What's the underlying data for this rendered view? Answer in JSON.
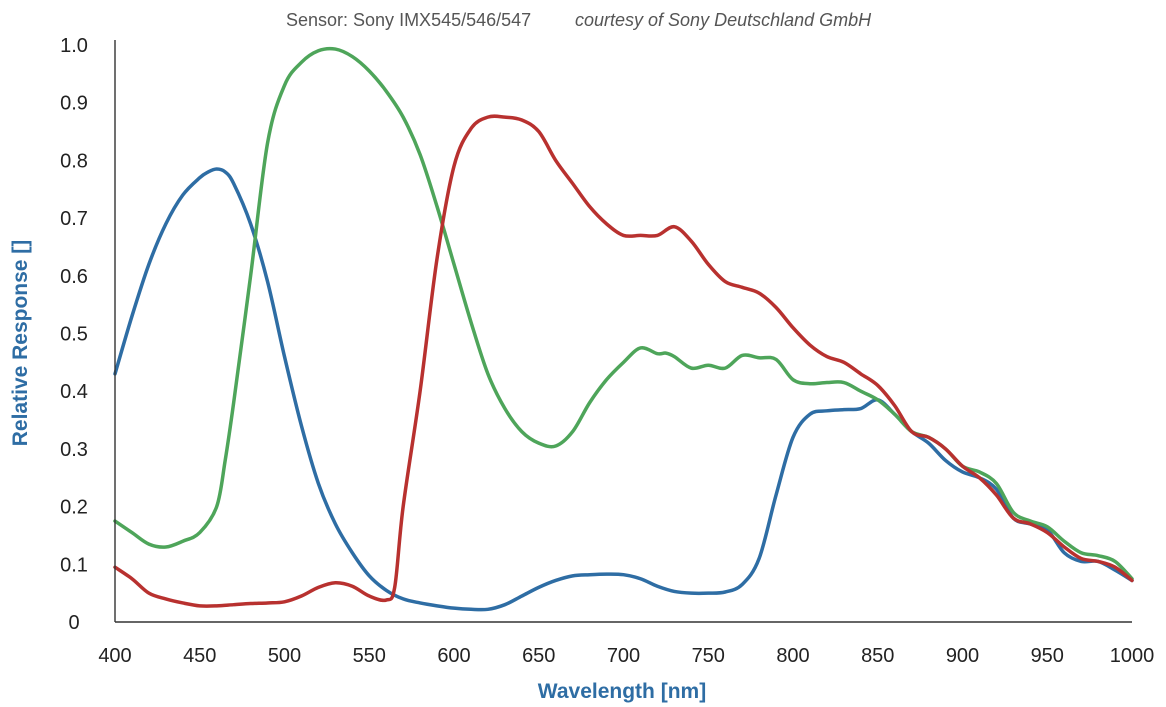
{
  "chart_data": {
    "type": "line",
    "title": "Sensor: Sony IMX545/546/547",
    "subtitle": "courtesy of Sony Deutschland GmbH",
    "xlabel": "Wavelength [nm]",
    "ylabel": "Relative Response []",
    "xlim": [
      400,
      1000
    ],
    "ylim": [
      0,
      1.0
    ],
    "x_ticks": [
      "400",
      "450",
      "500",
      "550",
      "600",
      "650",
      "700",
      "750",
      "800",
      "850",
      "900",
      "950",
      "1000"
    ],
    "y_ticks": [
      "0",
      "0.1",
      "0.2",
      "0.3",
      "0.4",
      "0.5",
      "0.6",
      "0.7",
      "0.8",
      "0.9",
      "1.0"
    ],
    "axis_label_color": "#2e6da4",
    "grid": false,
    "legend": "none",
    "series": [
      {
        "color": "#2e6da4",
        "x": [
          400,
          410,
          420,
          430,
          440,
          450,
          455,
          460,
          465,
          470,
          480,
          490,
          500,
          510,
          520,
          530,
          540,
          550,
          560,
          570,
          580,
          590,
          600,
          610,
          620,
          630,
          640,
          650,
          660,
          670,
          680,
          690,
          700,
          710,
          720,
          730,
          740,
          750,
          760,
          770,
          780,
          790,
          800,
          810,
          820,
          830,
          840,
          850,
          860,
          870,
          880,
          890,
          900,
          910,
          920,
          930,
          940,
          950,
          960,
          970,
          980,
          990,
          1000
        ],
        "y": [
          0.43,
          0.53,
          0.62,
          0.69,
          0.74,
          0.77,
          0.78,
          0.785,
          0.78,
          0.76,
          0.69,
          0.59,
          0.46,
          0.34,
          0.24,
          0.17,
          0.12,
          0.08,
          0.055,
          0.04,
          0.033,
          0.028,
          0.024,
          0.022,
          0.022,
          0.03,
          0.045,
          0.06,
          0.072,
          0.08,
          0.082,
          0.083,
          0.082,
          0.075,
          0.062,
          0.053,
          0.05,
          0.05,
          0.052,
          0.065,
          0.11,
          0.22,
          0.32,
          0.36,
          0.366,
          0.368,
          0.37,
          0.385,
          0.36,
          0.33,
          0.31,
          0.28,
          0.26,
          0.25,
          0.23,
          0.18,
          0.17,
          0.16,
          0.12,
          0.105,
          0.105,
          0.09,
          0.072
        ]
      },
      {
        "color": "#4ea55a",
        "x": [
          400,
          410,
          420,
          430,
          440,
          450,
          460,
          465,
          470,
          480,
          490,
          500,
          510,
          520,
          530,
          540,
          550,
          560,
          570,
          580,
          590,
          600,
          610,
          620,
          630,
          640,
          650,
          660,
          670,
          680,
          690,
          700,
          710,
          720,
          725,
          730,
          740,
          750,
          760,
          770,
          780,
          790,
          800,
          810,
          820,
          830,
          840,
          850,
          860,
          870,
          880,
          890,
          900,
          910,
          920,
          930,
          940,
          950,
          960,
          970,
          980,
          990,
          1000
        ],
        "y": [
          0.175,
          0.155,
          0.135,
          0.13,
          0.14,
          0.155,
          0.2,
          0.28,
          0.38,
          0.6,
          0.83,
          0.93,
          0.97,
          0.99,
          0.993,
          0.98,
          0.955,
          0.92,
          0.875,
          0.81,
          0.72,
          0.62,
          0.52,
          0.43,
          0.37,
          0.33,
          0.31,
          0.305,
          0.33,
          0.38,
          0.42,
          0.45,
          0.475,
          0.465,
          0.466,
          0.46,
          0.44,
          0.445,
          0.44,
          0.462,
          0.458,
          0.455,
          0.42,
          0.413,
          0.415,
          0.415,
          0.4,
          0.385,
          0.36,
          0.33,
          0.32,
          0.3,
          0.27,
          0.26,
          0.24,
          0.19,
          0.175,
          0.165,
          0.14,
          0.12,
          0.115,
          0.105,
          0.075
        ]
      },
      {
        "color": "#b8312f",
        "x": [
          400,
          410,
          420,
          430,
          440,
          450,
          460,
          470,
          480,
          490,
          500,
          510,
          520,
          530,
          540,
          550,
          560,
          565,
          570,
          580,
          590,
          600,
          610,
          620,
          630,
          640,
          650,
          660,
          670,
          680,
          690,
          700,
          710,
          720,
          730,
          740,
          750,
          760,
          770,
          780,
          790,
          800,
          810,
          820,
          830,
          840,
          850,
          860,
          870,
          880,
          890,
          900,
          910,
          920,
          930,
          940,
          950,
          960,
          970,
          980,
          990,
          1000
        ],
        "y": [
          0.095,
          0.075,
          0.05,
          0.04,
          0.033,
          0.028,
          0.028,
          0.03,
          0.032,
          0.033,
          0.035,
          0.045,
          0.06,
          0.068,
          0.062,
          0.045,
          0.038,
          0.06,
          0.2,
          0.4,
          0.63,
          0.79,
          0.855,
          0.875,
          0.875,
          0.87,
          0.85,
          0.8,
          0.76,
          0.72,
          0.69,
          0.67,
          0.67,
          0.67,
          0.685,
          0.66,
          0.62,
          0.59,
          0.58,
          0.57,
          0.545,
          0.51,
          0.48,
          0.46,
          0.45,
          0.43,
          0.41,
          0.375,
          0.33,
          0.32,
          0.3,
          0.27,
          0.25,
          0.22,
          0.18,
          0.17,
          0.155,
          0.13,
          0.11,
          0.105,
          0.095,
          0.072
        ]
      }
    ]
  }
}
